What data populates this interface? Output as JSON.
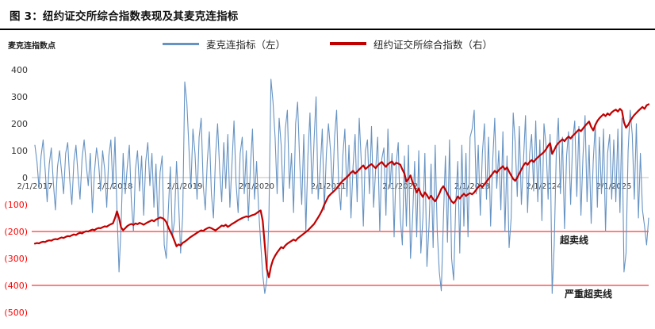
{
  "header": {
    "title": "图 3：纽约证交所综合指数表现及其麦克连指标"
  },
  "chart_data": {
    "type": "line",
    "title": "纽约证交所综合指数表现及其麦克连指标",
    "ylabel": "麦克连指数点",
    "ylim": [
      -500,
      400
    ],
    "grid": "off",
    "legend_position": "top",
    "y_ticks": [
      {
        "v": 400,
        "label": "400"
      },
      {
        "v": 300,
        "label": "300"
      },
      {
        "v": 200,
        "label": "200"
      },
      {
        "v": 100,
        "label": "100"
      },
      {
        "v": 0,
        "label": "0"
      },
      {
        "v": -100,
        "label": "(100)"
      },
      {
        "v": -200,
        "label": "(200)"
      },
      {
        "v": -300,
        "label": "(300)"
      },
      {
        "v": -400,
        "label": "(400)"
      },
      {
        "v": -500,
        "label": "(500)"
      }
    ],
    "x_ticks": [
      {
        "label": "2/1/2017",
        "i": 0
      },
      {
        "label": "2/1/2018",
        "i": 39
      },
      {
        "label": "2/1/2019",
        "i": 73
      },
      {
        "label": "2/1/2020",
        "i": 108
      },
      {
        "label": "2/1/2021",
        "i": 143
      },
      {
        "label": "2/1/2022",
        "i": 178
      },
      {
        "label": "2/1/2023",
        "i": 213
      },
      {
        "label": "2/1/2024",
        "i": 248
      },
      {
        "label": "2/1/2025",
        "i": 282
      }
    ],
    "thresholds": [
      {
        "v": -200,
        "label": "超卖线"
      },
      {
        "v": -400,
        "label": "严重超卖线"
      }
    ],
    "colors": {
      "mcclellan": "#6693C3",
      "nyse": "#C00000",
      "threshold": "#FF0000",
      "negative_tick": "#FF0000",
      "positive_tick": "#333333",
      "x_tick": "#404040",
      "zero_line": "#BFBFBF"
    },
    "right_axis": {
      "visible": false,
      "note": "second series plotted on hidden right axis; values stored in left-axis plot units"
    },
    "series": [
      {
        "name": "麦克连指标（左）",
        "axis": "left",
        "color": "#6693C3",
        "values": [
          120,
          60,
          -40,
          80,
          140,
          30,
          -90,
          50,
          110,
          -20,
          -120,
          40,
          100,
          20,
          -60,
          90,
          130,
          -10,
          -100,
          60,
          120,
          10,
          -80,
          70,
          140,
          50,
          -30,
          90,
          -130,
          20,
          110,
          60,
          -50,
          100,
          30,
          -110,
          80,
          140,
          -40,
          150,
          -120,
          -350,
          -180,
          90,
          -60,
          40,
          120,
          -90,
          -200,
          30,
          100,
          -50,
          80,
          -140,
          60,
          130,
          -30,
          90,
          -110,
          50,
          -180,
          20,
          80,
          -250,
          -300,
          -120,
          40,
          -220,
          -160,
          60,
          -90,
          -280,
          -140,
          355,
          280,
          120,
          -40,
          180,
          90,
          -80,
          150,
          220,
          -30,
          -120,
          60,
          170,
          -60,
          -150,
          80,
          200,
          30,
          -90,
          130,
          -40,
          160,
          -110,
          50,
          210,
          -20,
          -130,
          90,
          150,
          -60,
          100,
          -160,
          40,
          180,
          -80,
          60,
          -120,
          -240,
          -360,
          -430,
          -380,
          -150,
          365,
          280,
          150,
          -60,
          220,
          120,
          -90,
          180,
          250,
          -40,
          90,
          -130,
          200,
          280,
          60,
          -100,
          160,
          -200,
          80,
          240,
          -60,
          140,
          300,
          -80,
          30,
          180,
          -120,
          90,
          200,
          100,
          -50,
          150,
          250,
          -30,
          -120,
          80,
          180,
          -70,
          120,
          -150,
          40,
          160,
          -90,
          220,
          60,
          -180,
          100,
          140,
          -60,
          190,
          -110,
          30,
          150,
          -200,
          70,
          110,
          -140,
          180,
          -40,
          90,
          -220,
          50,
          130,
          -150,
          -250,
          80,
          -180,
          120,
          -300,
          -150,
          60,
          -220,
          100,
          -280,
          -150,
          90,
          -330,
          -180,
          50,
          -260,
          120,
          -200,
          -350,
          -420,
          -160,
          80,
          -240,
          140,
          -300,
          -380,
          -100,
          60,
          -280,
          120,
          -180,
          90,
          -220,
          150,
          180,
          250,
          -60,
          120,
          -140,
          90,
          200,
          -80,
          150,
          -180,
          60,
          220,
          -40,
          100,
          -120,
          170,
          -200,
          80,
          -260,
          -150,
          240,
          130,
          -70,
          190,
          -100,
          60,
          230,
          -130,
          90,
          160,
          -50,
          210,
          -90,
          140,
          -160,
          200,
          120,
          -80,
          160,
          -430,
          -250,
          90,
          220,
          -60,
          150,
          -190,
          80,
          170,
          -100,
          140,
          210,
          -70,
          190,
          -140,
          80,
          230,
          -90,
          120,
          -170,
          60,
          200,
          -110,
          150,
          -60,
          180,
          -200,
          90,
          160,
          -80,
          140,
          -90,
          180,
          -130,
          220,
          -350,
          -280,
          100,
          250,
          160,
          -80,
          200,
          -150,
          90,
          -120,
          -180,
          -250,
          -150
        ]
      },
      {
        "name": "纽约证交所综合指数（右）",
        "axis": "right",
        "color": "#C00000",
        "values": [
          -245,
          -243,
          -244,
          -240,
          -238,
          -239,
          -235,
          -233,
          -234,
          -230,
          -228,
          -229,
          -225,
          -222,
          -224,
          -220,
          -217,
          -218,
          -214,
          -211,
          -213,
          -208,
          -205,
          -207,
          -202,
          -199,
          -200,
          -196,
          -193,
          -195,
          -190,
          -187,
          -188,
          -184,
          -181,
          -182,
          -177,
          -173,
          -170,
          -150,
          -125,
          -150,
          -185,
          -195,
          -188,
          -180,
          -175,
          -172,
          -176,
          -170,
          -173,
          -168,
          -171,
          -175,
          -170,
          -166,
          -162,
          -158,
          -162,
          -156,
          -152,
          -148,
          -150,
          -155,
          -165,
          -185,
          -200,
          -215,
          -235,
          -255,
          -248,
          -252,
          -242,
          -238,
          -232,
          -226,
          -220,
          -215,
          -210,
          -205,
          -200,
          -196,
          -198,
          -192,
          -188,
          -185,
          -188,
          -192,
          -196,
          -190,
          -184,
          -178,
          -180,
          -175,
          -183,
          -178,
          -172,
          -168,
          -163,
          -158,
          -154,
          -150,
          -147,
          -144,
          -146,
          -142,
          -139,
          -137,
          -132,
          -126,
          -122,
          -160,
          -250,
          -340,
          -370,
          -330,
          -305,
          -290,
          -278,
          -268,
          -258,
          -262,
          -252,
          -245,
          -240,
          -235,
          -230,
          -234,
          -226,
          -220,
          -214,
          -208,
          -202,
          -196,
          -188,
          -180,
          -172,
          -160,
          -148,
          -135,
          -120,
          -100,
          -85,
          -70,
          -62,
          -55,
          -48,
          -40,
          -30,
          -20,
          -12,
          -5,
          2,
          10,
          18,
          25,
          15,
          22,
          30,
          38,
          45,
          32,
          38,
          45,
          50,
          42,
          35,
          45,
          52,
          58,
          48,
          40,
          50,
          55,
          60,
          48,
          55,
          52,
          48,
          30,
          15,
          -15,
          -5,
          8,
          -18,
          -35,
          -55,
          -40,
          -60,
          -72,
          -55,
          -65,
          -78,
          -68,
          -80,
          -88,
          -75,
          -60,
          -42,
          -32,
          -45,
          -60,
          -75,
          -88,
          -95,
          -85,
          -70,
          -78,
          -68,
          -60,
          -68,
          -62,
          -58,
          -62,
          -55,
          -45,
          -35,
          -28,
          -35,
          -25,
          -15,
          -5,
          5,
          15,
          25,
          18,
          28,
          35,
          42,
          30,
          38,
          22,
          8,
          -5,
          -12,
          0,
          15,
          30,
          45,
          55,
          48,
          58,
          65,
          58,
          68,
          75,
          82,
          88,
          95,
          105,
          118,
          128,
          88,
          102,
          118,
          128,
          135,
          142,
          135,
          145,
          152,
          145,
          155,
          162,
          170,
          178,
          172,
          182,
          192,
          200,
          208,
          188,
          175,
          195,
          210,
          220,
          228,
          235,
          228,
          238,
          232,
          242,
          248,
          252,
          245,
          255,
          248,
          205,
          185,
          195,
          210,
          222,
          232,
          240,
          248,
          255,
          262,
          255,
          268,
          272
        ]
      }
    ]
  }
}
